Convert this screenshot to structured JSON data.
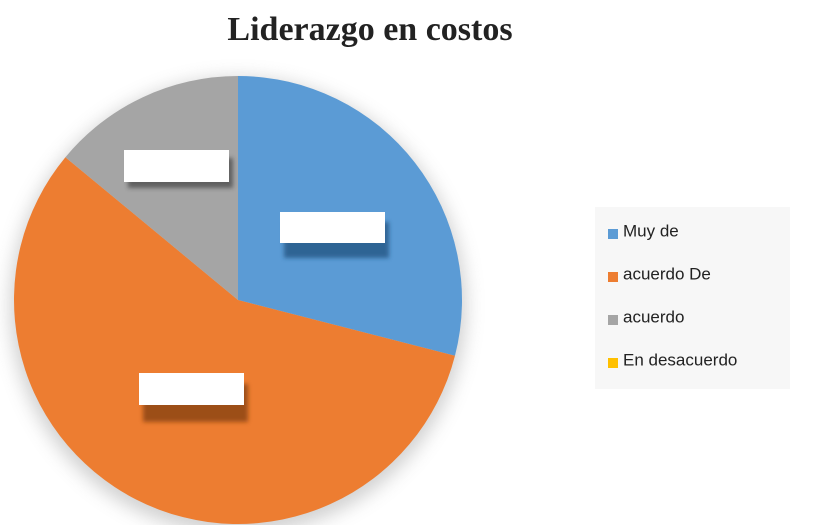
{
  "chart_data": {
    "type": "pie",
    "title": "Liderazgo en costos",
    "categories": [
      "Muy de",
      "acuerdo De",
      "acuerdo",
      "En desacuerdo"
    ],
    "values": [
      29,
      57,
      14,
      0
    ],
    "colors": [
      "#5b9bd5",
      "#ed7d31",
      "#a5a5a5",
      "#ffc000"
    ],
    "legend": "right"
  }
}
